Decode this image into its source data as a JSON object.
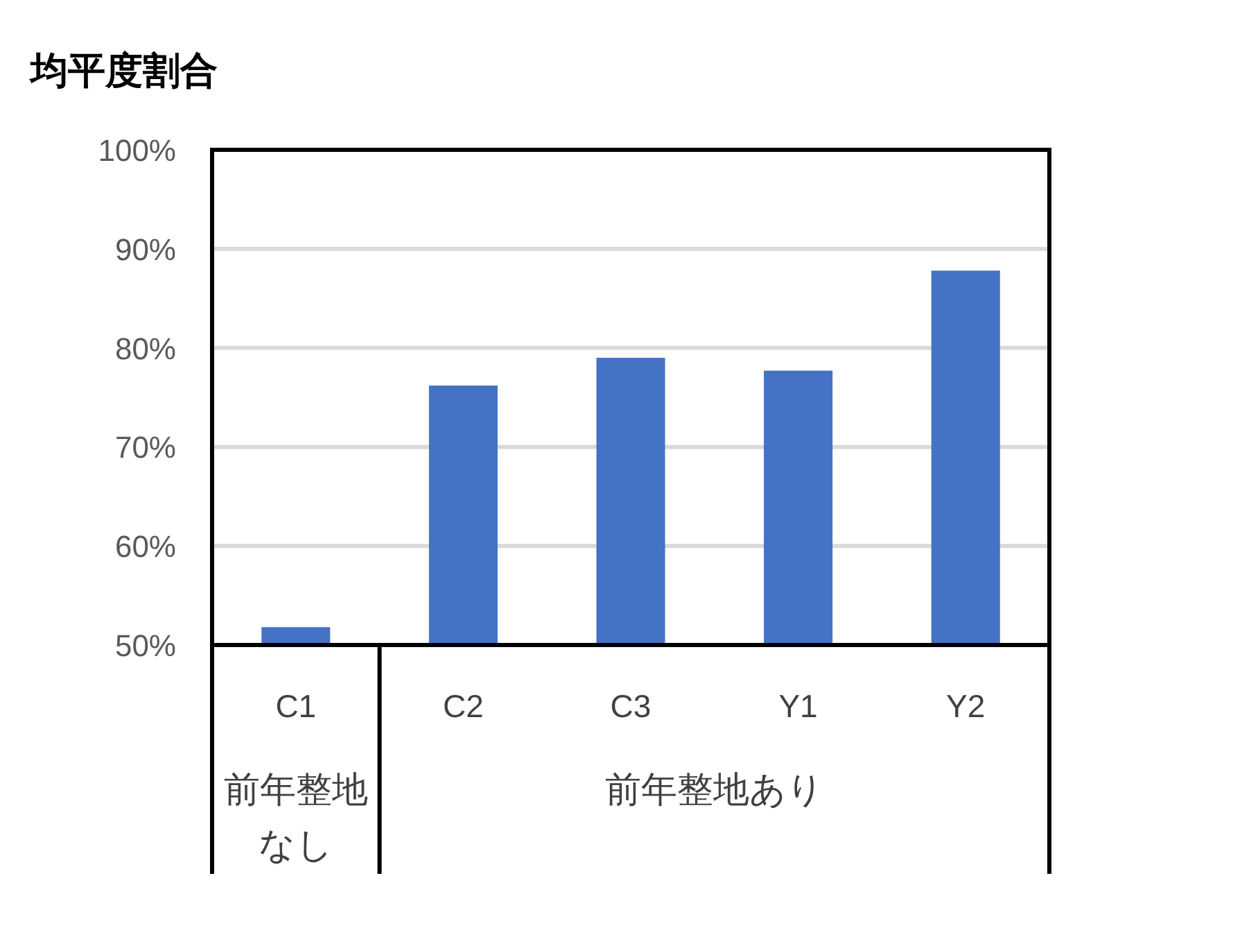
{
  "chart_data": {
    "type": "bar",
    "title": "均平度割合",
    "categories": [
      "C1",
      "C2",
      "C3",
      "Y1",
      "Y2"
    ],
    "values": [
      51.8,
      76.2,
      79.0,
      77.7,
      87.8
    ],
    "color": "#4472c4",
    "ylim": [
      50,
      100
    ],
    "yticks": [
      {
        "value": 50,
        "label": "50%"
      },
      {
        "value": 60,
        "label": "60%"
      },
      {
        "value": 70,
        "label": "70%"
      },
      {
        "value": 80,
        "label": "80%"
      },
      {
        "value": 90,
        "label": "90%"
      },
      {
        "value": 100,
        "label": "100%"
      }
    ],
    "grid": "y",
    "annotations": [
      "前年整地なし",
      "前年整地あり"
    ]
  }
}
